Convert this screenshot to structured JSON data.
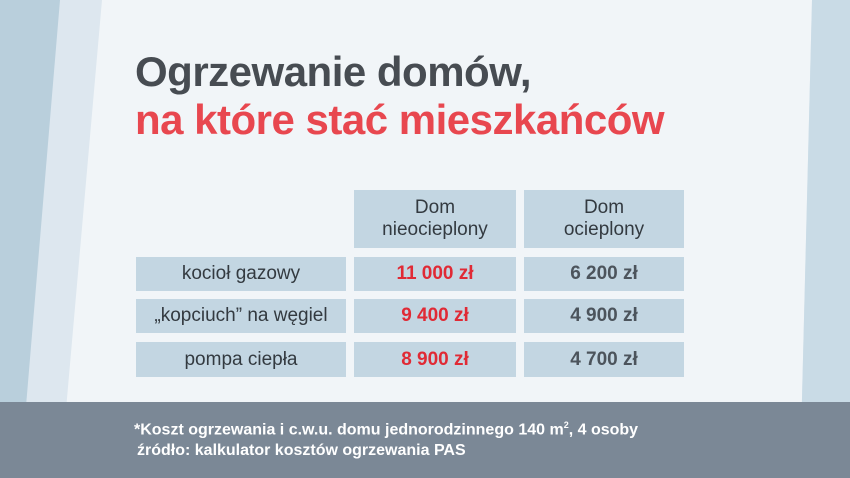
{
  "title": {
    "line1": "Ogrzewanie domów,",
    "line2": "na które stać mieszkańców"
  },
  "table": {
    "headers": [
      {
        "line1": "Dom",
        "line2": "nieocieplony"
      },
      {
        "line1": "Dom",
        "line2": "ocieplony"
      }
    ],
    "rows": [
      {
        "label": "kocioł gazowy",
        "uninsulated": "11 000 zł",
        "insulated": "6 200 zł"
      },
      {
        "label": "„kopciuch” na węgiel",
        "uninsulated": "9 400 zł",
        "insulated": "4 900 zł"
      },
      {
        "label": "pompa ciepła",
        "uninsulated": "8 900 zł",
        "insulated": "4 700 zł"
      }
    ]
  },
  "footer": {
    "note_main": "*Koszt ogrzewania i c.w.u. domu jednorodzinnego 140 m",
    "note_sup": "2",
    "note_end": ", 4 osoby",
    "source": "źródło: kalkulator kosztów ogrzewania PAS"
  },
  "colors": {
    "accent_red": "#e8474f",
    "cell_bg": "#c3d6e2",
    "footer_bg": "#7b8896",
    "title_dark": "#474c52"
  }
}
